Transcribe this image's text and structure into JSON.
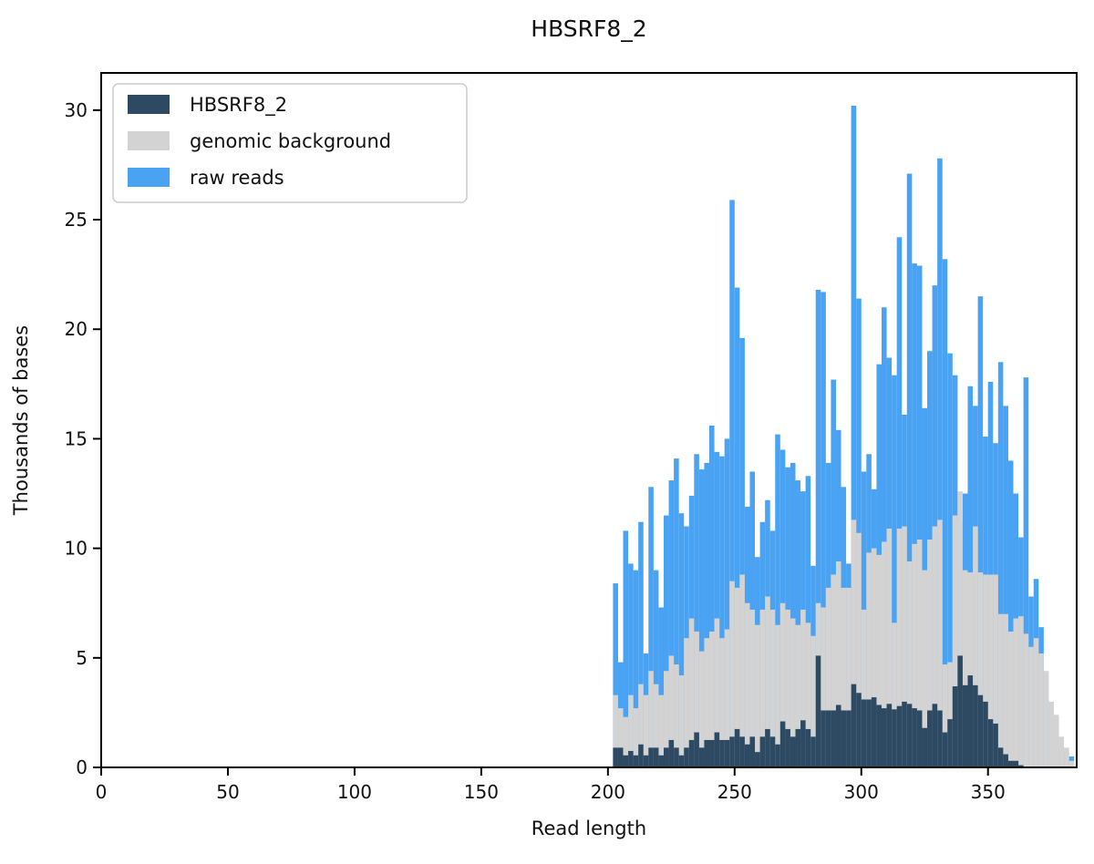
{
  "title": "HBSRF8_2",
  "legend": {
    "items": [
      {
        "label": "HBSRF8_2",
        "color": "#2e4a62"
      },
      {
        "label": "genomic background",
        "color": "#d3d3d3"
      },
      {
        "label": "raw reads",
        "color": "#4aa2f2"
      }
    ],
    "position": "upper left",
    "border_color": "#cccccc",
    "background": "#ffffff"
  },
  "chart_data": {
    "type": "bar",
    "subtype": "overlaid-histogram",
    "title": "HBSRF8_2",
    "xlabel": "Read length",
    "ylabel": "Thousands of bases",
    "xlim": [
      0,
      385
    ],
    "ylim": [
      0,
      31.7
    ],
    "xticks": [
      0,
      50,
      100,
      150,
      200,
      250,
      300,
      350
    ],
    "yticks": [
      0,
      5,
      10,
      15,
      20,
      25,
      30
    ],
    "grid": false,
    "legend_position": "upper left",
    "bin_start": 202,
    "bin_width": 2,
    "bin_count": 91,
    "draw_order": [
      "raw reads",
      "genomic background",
      "HBSRF8_2"
    ],
    "series": [
      {
        "name": "HBSRF8_2",
        "color": "#2e4a62",
        "values": [
          0.9,
          0.9,
          0.55,
          0.75,
          0.55,
          1.05,
          0.55,
          0.9,
          0.9,
          0.55,
          0.9,
          1.25,
          0.9,
          0.55,
          0.9,
          1.25,
          1.6,
          0.9,
          1.25,
          1.25,
          1.6,
          1.25,
          1.25,
          1.4,
          1.75,
          1.4,
          1.05,
          1.4,
          0.7,
          1.4,
          1.75,
          1.4,
          1.05,
          2.1,
          1.75,
          1.4,
          1.75,
          2.15,
          1.75,
          1.4,
          5.1,
          2.6,
          2.6,
          2.6,
          2.85,
          2.6,
          2.6,
          3.8,
          3.4,
          3.1,
          3.1,
          3.2,
          2.85,
          2.7,
          2.9,
          2.65,
          2.8,
          3.0,
          2.9,
          2.7,
          2.6,
          1.8,
          2.6,
          2.9,
          2.6,
          1.6,
          2.2,
          3.7,
          5.1,
          3.75,
          4.2,
          3.75,
          3.3,
          3.0,
          2.2,
          2.0,
          0.9,
          0.6,
          0.3,
          0.3,
          0.1,
          0,
          0,
          0,
          0,
          0,
          0,
          0,
          0,
          0,
          0
        ]
      },
      {
        "name": "genomic background",
        "color": "#d3d3d3",
        "values": [
          3.3,
          2.7,
          2.3,
          3.3,
          2.7,
          3.8,
          3.3,
          4.4,
          3.8,
          3.3,
          4.4,
          5.1,
          4.7,
          4.2,
          5.9,
          6.8,
          6.2,
          5.3,
          5.9,
          6.2,
          6.8,
          5.9,
          6.3,
          8.5,
          8.2,
          8.8,
          7.5,
          7.2,
          6.5,
          7.2,
          7.8,
          7.2,
          6.5,
          7.5,
          7.2,
          6.8,
          6.5,
          7.2,
          6.6,
          6.0,
          7.5,
          7.3,
          8.2,
          8.8,
          9.4,
          8.2,
          8.2,
          11.3,
          10.7,
          7.2,
          9.8,
          10.0,
          9.7,
          10.3,
          10.9,
          6.6,
          10.9,
          11.0,
          9.4,
          10.2,
          10.4,
          9.0,
          10.4,
          11.0,
          11.3,
          4.7,
          4.8,
          11.5,
          12.6,
          9.0,
          8.9,
          11.0,
          8.9,
          8.8,
          8.8,
          8.8,
          7.0,
          7.0,
          6.2,
          6.8,
          6.9,
          6.1,
          5.5,
          5.9,
          5.2,
          4.4,
          3.0,
          2.4,
          1.4,
          0.9,
          0.3
        ]
      },
      {
        "name": "raw reads",
        "color": "#4aa2f2",
        "values": [
          8.4,
          4.8,
          10.8,
          9.3,
          9.0,
          11.2,
          5.2,
          12.8,
          9.0,
          7.3,
          11.5,
          13.1,
          14.1,
          11.6,
          11.0,
          12.4,
          14.3,
          13.6,
          13.9,
          15.6,
          14.4,
          14.2,
          15.0,
          25.9,
          21.9,
          19.6,
          11.9,
          13.5,
          9.6,
          11.2,
          12.2,
          10.8,
          15.2,
          14.5,
          13.7,
          13.9,
          13.1,
          12.6,
          13.3,
          9.2,
          21.8,
          21.7,
          13.9,
          17.7,
          15.4,
          12.8,
          9.3,
          30.2,
          21.4,
          13.5,
          14.3,
          12.7,
          18.4,
          21.0,
          18.7,
          17.9,
          24.2,
          16.1,
          27.1,
          23.0,
          22.9,
          16.4,
          19.0,
          22.0,
          27.8,
          23.2,
          18.9,
          17.9,
          11.2,
          12.5,
          17.4,
          16.5,
          21.5,
          15.1,
          17.6,
          14.8,
          18.5,
          16.5,
          14.0,
          12.5,
          10.5,
          17.8,
          7.8,
          8.6,
          6.4,
          3.1,
          2.0,
          1.2,
          0.9,
          0.7,
          0.5
        ]
      }
    ]
  }
}
